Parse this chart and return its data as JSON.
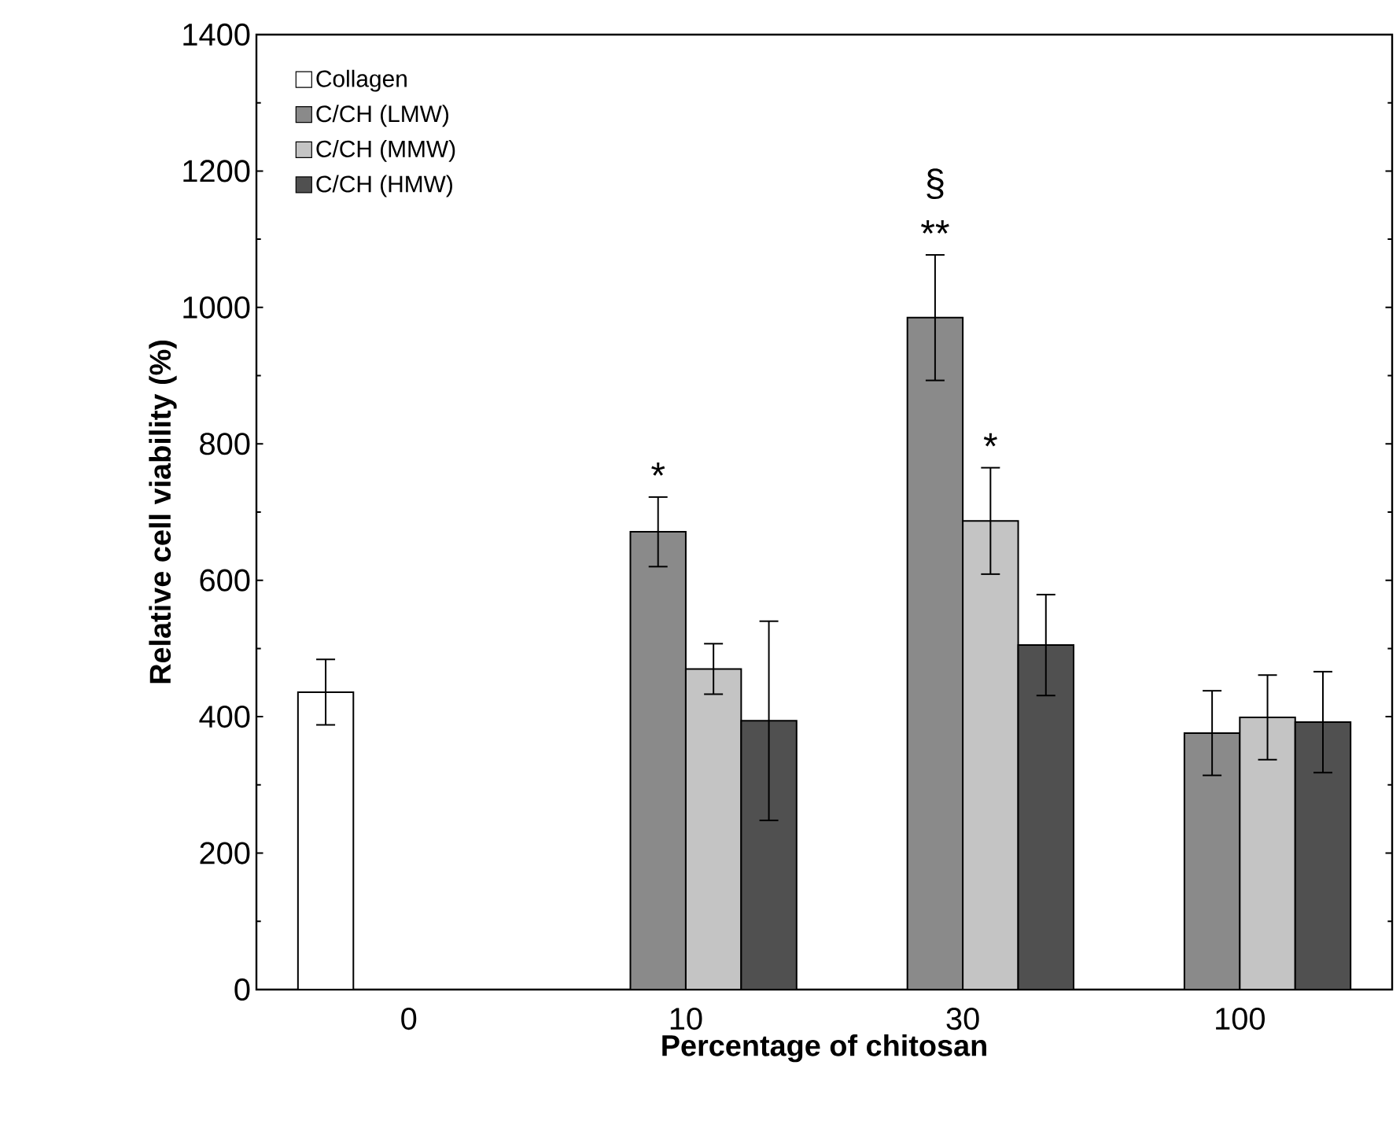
{
  "chart_data": {
    "type": "bar",
    "xlabel": "Percentage of chitosan",
    "ylabel": "Relative cell viability (%)",
    "categories": [
      "0",
      "10",
      "30",
      "100"
    ],
    "series": [
      {
        "name": "Collagen",
        "color": "#ffffff",
        "values": [
          436,
          null,
          null,
          null
        ],
        "errors": [
          48,
          null,
          null,
          null
        ]
      },
      {
        "name": "C/CH (LMW)",
        "color": "#8a8a8a",
        "values": [
          null,
          671,
          985,
          376
        ],
        "errors": [
          null,
          51,
          92,
          62
        ]
      },
      {
        "name": "C/CH (MMW)",
        "color": "#c4c4c4",
        "values": [
          null,
          470,
          687,
          399
        ],
        "errors": [
          null,
          37,
          78,
          62
        ]
      },
      {
        "name": "C/CH (HMW)",
        "color": "#505050",
        "values": [
          null,
          394,
          505,
          392
        ],
        "errors": [
          null,
          146,
          74,
          74
        ]
      }
    ],
    "ylim": [
      0,
      1400
    ],
    "yticks": [
      0,
      200,
      400,
      600,
      800,
      1000,
      1200,
      1400
    ],
    "legend": "top left",
    "annotations": [
      {
        "text": "*",
        "x": "10",
        "y": 671
      },
      {
        "text": "**",
        "x": "30",
        "y": 985
      },
      "§",
      {
        "text": "*",
        "x": "30",
        "y": 687
      }
    ]
  }
}
